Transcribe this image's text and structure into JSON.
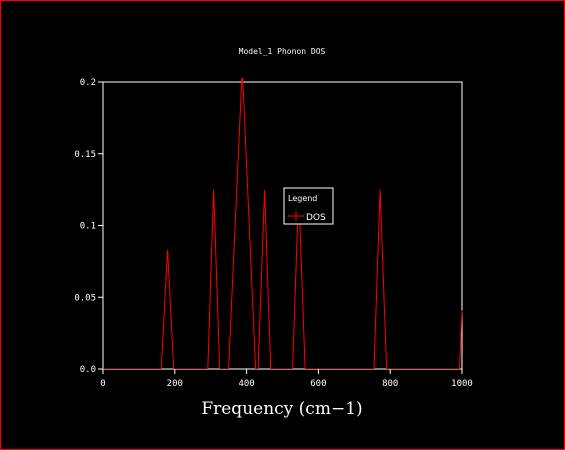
{
  "chart_data": {
    "type": "line",
    "title": "Model_1 Phonon DOS",
    "xlabel": "Frequency (cm−1)",
    "ylabel": "",
    "xlim": [
      0,
      1000
    ],
    "ylim": [
      0,
      0.2
    ],
    "xticks": [
      {
        "value": 0,
        "label": "0"
      },
      {
        "value": 200,
        "label": "200"
      },
      {
        "value": 400,
        "label": "400"
      },
      {
        "value": 600,
        "label": "600"
      },
      {
        "value": 800,
        "label": "800"
      },
      {
        "value": 1000,
        "label": "1000"
      }
    ],
    "yticks": [
      {
        "value": 0,
        "label": "0.0"
      },
      {
        "value": 0.05,
        "label": "0.05"
      },
      {
        "value": 0.1,
        "label": "0.1"
      },
      {
        "value": 0.15,
        "label": "0.15"
      },
      {
        "value": 0.2,
        "label": "0.2"
      }
    ],
    "grid": false,
    "legend": {
      "title": "Legend",
      "placement": "center-right",
      "entries": [
        "DOS"
      ]
    },
    "series": [
      {
        "name": "DOS",
        "color": "#ff0000",
        "x": [
          0,
          162,
          180,
          197,
          292,
          308,
          325,
          350,
          388,
          425,
          432,
          450,
          467,
          528,
          545,
          563,
          755,
          772,
          790,
          993,
          1000
        ],
        "y": [
          0,
          0,
          0.083,
          0,
          0,
          0.125,
          0,
          0,
          0.21,
          0,
          0,
          0.125,
          0,
          0,
          0.125,
          0,
          0,
          0.125,
          0,
          0,
          0.041
        ]
      }
    ]
  },
  "colors": {
    "background": "#000000",
    "frame": "#ff0000",
    "axes": "#ffffff",
    "text": "#ffffff"
  }
}
